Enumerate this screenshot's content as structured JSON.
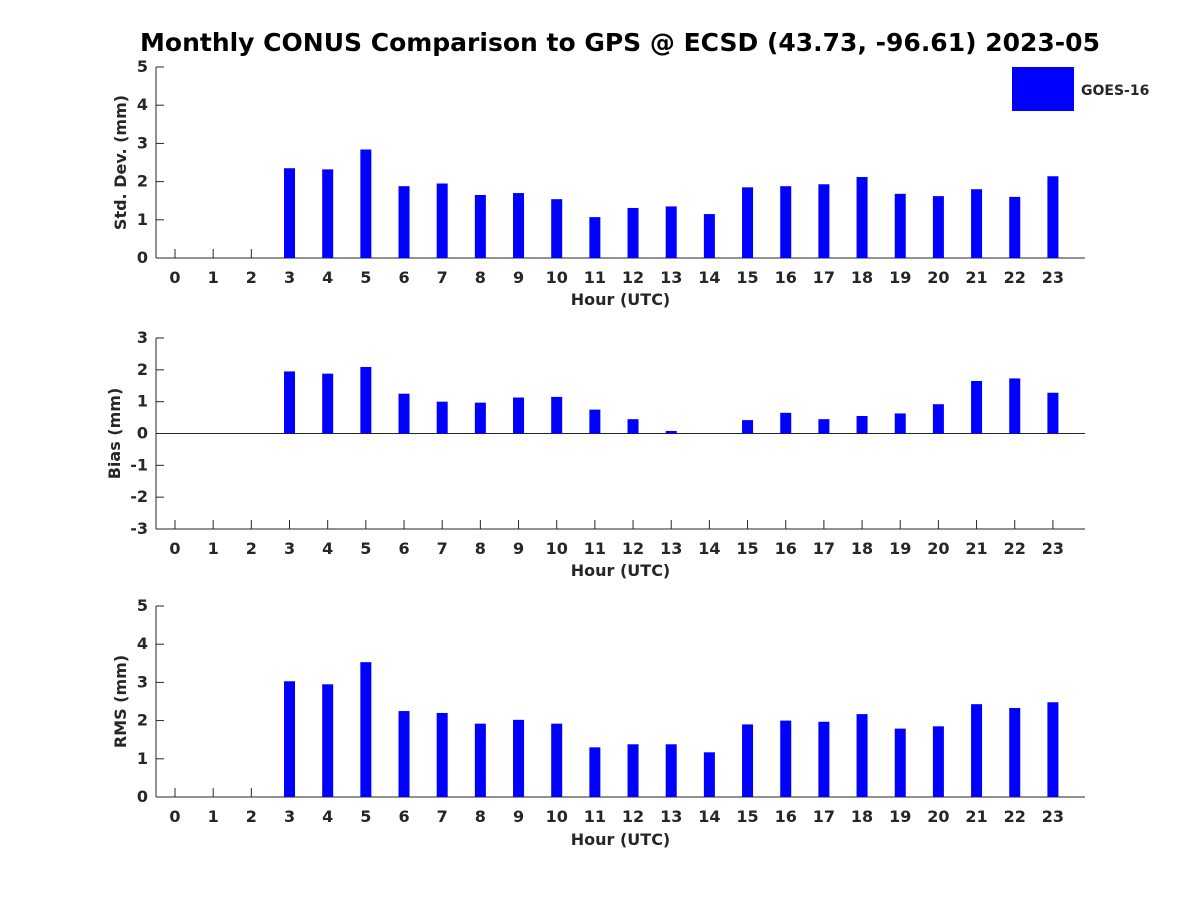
{
  "title": "Monthly CONUS Comparison to GPS @ ECSD (43.73, -96.61) 2023-05",
  "legend": {
    "label": "GOES-16",
    "color": "#0000ff"
  },
  "chart_data": [
    {
      "type": "bar",
      "xlabel": "Hour (UTC)",
      "ylabel": "Std. Dev. (mm)",
      "ylim": [
        0,
        5
      ],
      "yticks": [
        0,
        1,
        2,
        3,
        4,
        5
      ],
      "categories": [
        "0",
        "1",
        "2",
        "3",
        "4",
        "5",
        "6",
        "7",
        "8",
        "9",
        "10",
        "11",
        "12",
        "13",
        "14",
        "15",
        "16",
        "17",
        "18",
        "19",
        "20",
        "21",
        "22",
        "23"
      ],
      "series": [
        {
          "name": "GOES-16",
          "values": [
            null,
            null,
            null,
            2.35,
            2.32,
            2.84,
            1.88,
            1.95,
            1.65,
            1.7,
            1.54,
            1.07,
            1.31,
            1.35,
            1.15,
            1.85,
            1.88,
            1.93,
            2.12,
            1.68,
            1.62,
            1.8,
            1.6,
            2.14
          ]
        }
      ]
    },
    {
      "type": "bar",
      "xlabel": "Hour (UTC)",
      "ylabel": "Bias (mm)",
      "ylim": [
        -3,
        3
      ],
      "yticks": [
        -3,
        -2,
        -1,
        0,
        1,
        2,
        3
      ],
      "categories": [
        "0",
        "1",
        "2",
        "3",
        "4",
        "5",
        "6",
        "7",
        "8",
        "9",
        "10",
        "11",
        "12",
        "13",
        "14",
        "15",
        "16",
        "17",
        "18",
        "19",
        "20",
        "21",
        "22",
        "23"
      ],
      "series": [
        {
          "name": "GOES-16",
          "values": [
            null,
            null,
            null,
            1.95,
            1.88,
            2.09,
            1.25,
            1.0,
            0.97,
            1.13,
            1.15,
            0.75,
            0.45,
            0.08,
            0.0,
            0.42,
            0.65,
            0.45,
            0.55,
            0.63,
            0.92,
            1.65,
            1.73,
            1.28
          ]
        }
      ]
    },
    {
      "type": "bar",
      "xlabel": "Hour (UTC)",
      "ylabel": "RMS (mm)",
      "ylim": [
        0,
        5
      ],
      "yticks": [
        0,
        1,
        2,
        3,
        4,
        5
      ],
      "categories": [
        "0",
        "1",
        "2",
        "3",
        "4",
        "5",
        "6",
        "7",
        "8",
        "9",
        "10",
        "11",
        "12",
        "13",
        "14",
        "15",
        "16",
        "17",
        "18",
        "19",
        "20",
        "21",
        "22",
        "23"
      ],
      "series": [
        {
          "name": "GOES-16",
          "values": [
            null,
            null,
            null,
            3.03,
            2.95,
            3.53,
            2.25,
            2.2,
            1.92,
            2.02,
            1.92,
            1.3,
            1.38,
            1.38,
            1.17,
            1.9,
            2.0,
            1.97,
            2.17,
            1.79,
            1.85,
            2.43,
            2.33,
            2.48
          ]
        }
      ]
    }
  ]
}
